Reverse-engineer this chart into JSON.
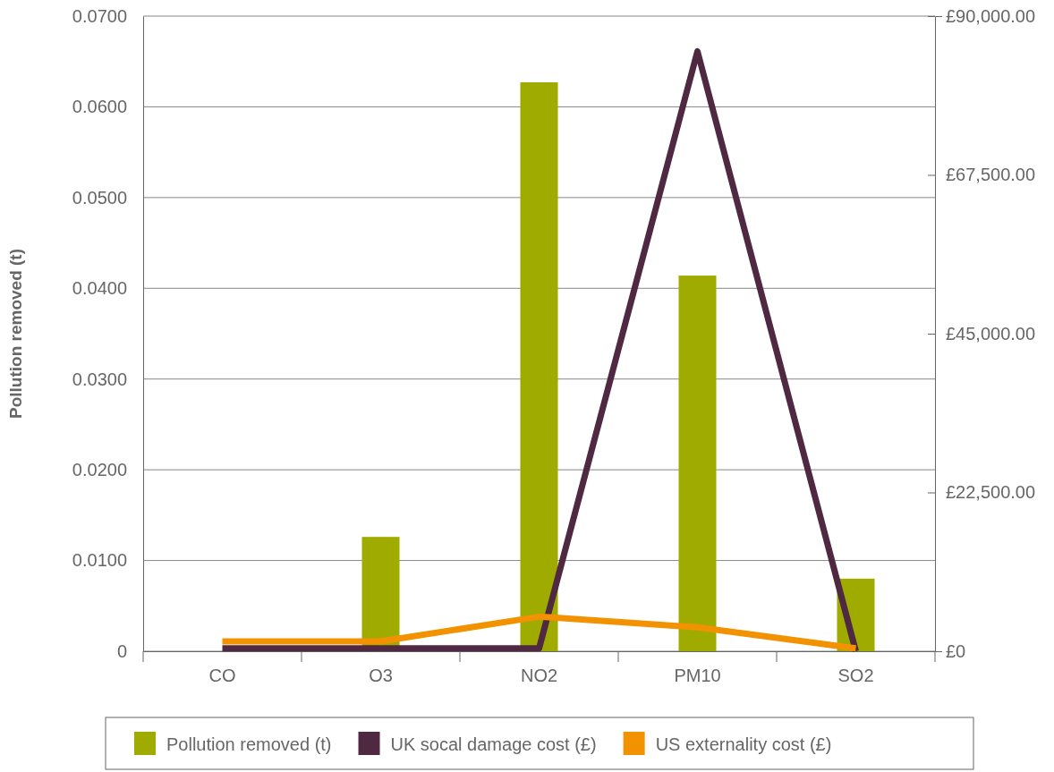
{
  "chart_data": {
    "type": "bar",
    "ylabel": "Pollution removed (t)",
    "categories": [
      "CO",
      "O3",
      "NO2",
      "PM10",
      "SO2"
    ],
    "series": [
      {
        "name": "Pollution removed (t)",
        "color": "#a0ab00",
        "values": [
          0,
          0.0126,
          0.0627,
          0.0414,
          0.008
        ]
      },
      {
        "name": "UK socal damage cost (£)",
        "type": "line",
        "axis": "y2",
        "color": "#4f2841",
        "values": [
          400,
          400,
          400,
          85000,
          0
        ]
      },
      {
        "name": "US externality cost (£)",
        "type": "line",
        "axis": "y2",
        "color": "#f39200",
        "values": [
          1400,
          1400,
          4900,
          3400,
          400
        ]
      }
    ],
    "ylim": [
      0,
      0.07
    ],
    "yticks": [
      0,
      {
        "value": 0.01,
        "label": "0.0100"
      },
      {
        "value": 0.02,
        "label": "0.0200"
      },
      {
        "value": 0.03,
        "label": "0.0300"
      },
      {
        "value": 0.04,
        "label": "0.0400"
      },
      {
        "value": 0.05,
        "label": "0.0500"
      },
      {
        "value": 0.06,
        "label": "0.0600"
      },
      {
        "value": 0.07,
        "label": "0.0700"
      }
    ],
    "y2lim": [
      0,
      90000
    ],
    "y2ticks": [
      {
        "value": 0,
        "label": "£0"
      },
      {
        "value": 22500,
        "label": "£22,500.00"
      },
      {
        "value": 45000,
        "label": "£45,000.00"
      },
      {
        "value": 67500,
        "label": "£67,500.00"
      },
      {
        "value": 90000,
        "label": "£90,000.00"
      }
    ],
    "grid": "y",
    "legend": "bottom",
    "marker": "none",
    "line_style": "solid"
  }
}
